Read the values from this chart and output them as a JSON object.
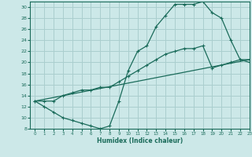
{
  "xlabel": "Humidex (Indice chaleur)",
  "bg_color": "#cce8e8",
  "grid_color": "#aacece",
  "line_color": "#1a6b5a",
  "line1_x": [
    0,
    1,
    2,
    3,
    4,
    5,
    6,
    7,
    8,
    9,
    10,
    11,
    12,
    13,
    14,
    15,
    16,
    17,
    18,
    19,
    20,
    21,
    22,
    23
  ],
  "line1_y": [
    13,
    12,
    11,
    10,
    9.5,
    9,
    8.5,
    8,
    8.5,
    13,
    18.5,
    22,
    23,
    26.5,
    28.5,
    30.5,
    30.5,
    30.5,
    31,
    29,
    28,
    24,
    20.5,
    20
  ],
  "line2_x": [
    0,
    1,
    2,
    3,
    4,
    5,
    6,
    7,
    8,
    9,
    10,
    11,
    12,
    13,
    14,
    15,
    16,
    17,
    18,
    19,
    20,
    21,
    22,
    23
  ],
  "line2_y": [
    13,
    13,
    13,
    14,
    14.5,
    15,
    15,
    15.5,
    15.5,
    16.5,
    17.5,
    18.5,
    19.5,
    20.5,
    21.5,
    22,
    22.5,
    22.5,
    23,
    19,
    19.5,
    20,
    20.5,
    20.5
  ],
  "line3_x": [
    0,
    23
  ],
  "line3_y": [
    13,
    20.5
  ],
  "ylim": [
    8,
    31
  ],
  "xlim": [
    -0.5,
    23
  ],
  "yticks": [
    8,
    10,
    12,
    14,
    16,
    18,
    20,
    22,
    24,
    26,
    28,
    30
  ],
  "xticks": [
    0,
    1,
    2,
    3,
    4,
    5,
    6,
    7,
    8,
    9,
    10,
    11,
    12,
    13,
    14,
    15,
    16,
    17,
    18,
    19,
    20,
    21,
    22,
    23
  ]
}
